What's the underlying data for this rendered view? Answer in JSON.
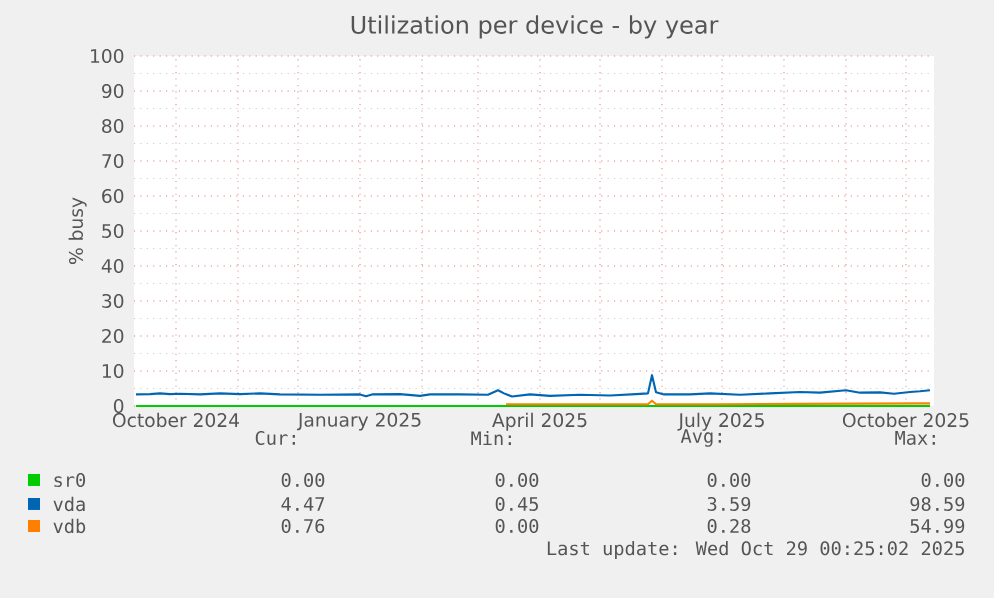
{
  "chart_data": {
    "type": "line",
    "title": "Utilization per device - by year",
    "ylabel": "% busy",
    "xlim": [
      "2024-09-10",
      "2025-10-15"
    ],
    "ylim": [
      0,
      100
    ],
    "xticks": [
      {
        "value": "2024-10-01",
        "label": "October 2024"
      },
      {
        "value": "2024-11-01",
        "label": null
      },
      {
        "value": "2024-12-01",
        "label": null
      },
      {
        "value": "2025-01-01",
        "label": "January 2025"
      },
      {
        "value": "2025-02-01",
        "label": null
      },
      {
        "value": "2025-03-01",
        "label": null
      },
      {
        "value": "2025-04-01",
        "label": "April 2025"
      },
      {
        "value": "2025-05-01",
        "label": null
      },
      {
        "value": "2025-06-01",
        "label": null
      },
      {
        "value": "2025-07-01",
        "label": "July 2025"
      },
      {
        "value": "2025-08-01",
        "label": null
      },
      {
        "value": "2025-09-01",
        "label": null
      },
      {
        "value": "2025-10-01",
        "label": "October 2025"
      }
    ],
    "yticks": [
      0,
      10,
      20,
      30,
      40,
      50,
      60,
      70,
      80,
      90,
      100
    ],
    "grid": true,
    "legend": "bottom",
    "marker": "none",
    "line_style": "solid",
    "series": [
      {
        "name": "sr0",
        "color": "#00cc00",
        "x": [
          "2024-09-11",
          "2025-10-13"
        ],
        "values": [
          0,
          0
        ]
      },
      {
        "name": "vda",
        "color": "#0066b3",
        "x": [
          "2024-09-11",
          "2024-09-18",
          "2024-09-23",
          "2024-09-28",
          "2024-10-03",
          "2024-10-13",
          "2024-10-23",
          "2024-11-02",
          "2024-11-12",
          "2024-11-22",
          "2024-12-12",
          "2025-01-01",
          "2025-01-04",
          "2025-01-07",
          "2025-01-21",
          "2025-01-31",
          "2025-02-05",
          "2025-02-20",
          "2025-03-06",
          "2025-03-11",
          "2025-03-14",
          "2025-03-18",
          "2025-03-27",
          "2025-04-06",
          "2025-04-21",
          "2025-05-06",
          "2025-05-19",
          "2025-05-25",
          "2025-05-27",
          "2025-05-29",
          "2025-06-02",
          "2025-06-15",
          "2025-06-25",
          "2025-07-10",
          "2025-07-25",
          "2025-08-09",
          "2025-08-19",
          "2025-09-01",
          "2025-09-08",
          "2025-09-18",
          "2025-09-25",
          "2025-10-03",
          "2025-10-08",
          "2025-10-13"
        ],
        "values": [
          3.3,
          3.4,
          3.6,
          3.4,
          3.5,
          3.3,
          3.6,
          3.4,
          3.6,
          3.3,
          3.2,
          3.3,
          2.8,
          3.3,
          3.4,
          2.9,
          3.3,
          3.3,
          3.2,
          4.5,
          3.6,
          2.7,
          3.3,
          2.9,
          3.2,
          3.0,
          3.4,
          3.6,
          8.8,
          3.9,
          3.3,
          3.3,
          3.6,
          3.2,
          3.6,
          4.0,
          3.8,
          4.5,
          3.8,
          3.9,
          3.5,
          4.0,
          4.2,
          4.5
        ]
      },
      {
        "name": "vdb",
        "color": "#ff8000",
        "x": [
          "2025-03-15",
          "2025-05-01",
          "2025-05-25",
          "2025-05-27",
          "2025-05-29",
          "2025-06-30",
          "2025-08-09",
          "2025-10-13"
        ],
        "values": [
          0.5,
          0.5,
          0.5,
          1.5,
          0.5,
          0.5,
          0.6,
          0.76
        ]
      }
    ],
    "annotations": [
      "Cur:",
      "Min:",
      "Avg:",
      "Max:",
      "0.00",
      "0.00",
      "0.00",
      "0.00",
      "4.47",
      "0.45",
      "3.59",
      "98.59",
      "0.76",
      "0.00",
      "0.28",
      "54.99",
      "Last update: Wed Oct 29 00:25:02 2025"
    ]
  }
}
